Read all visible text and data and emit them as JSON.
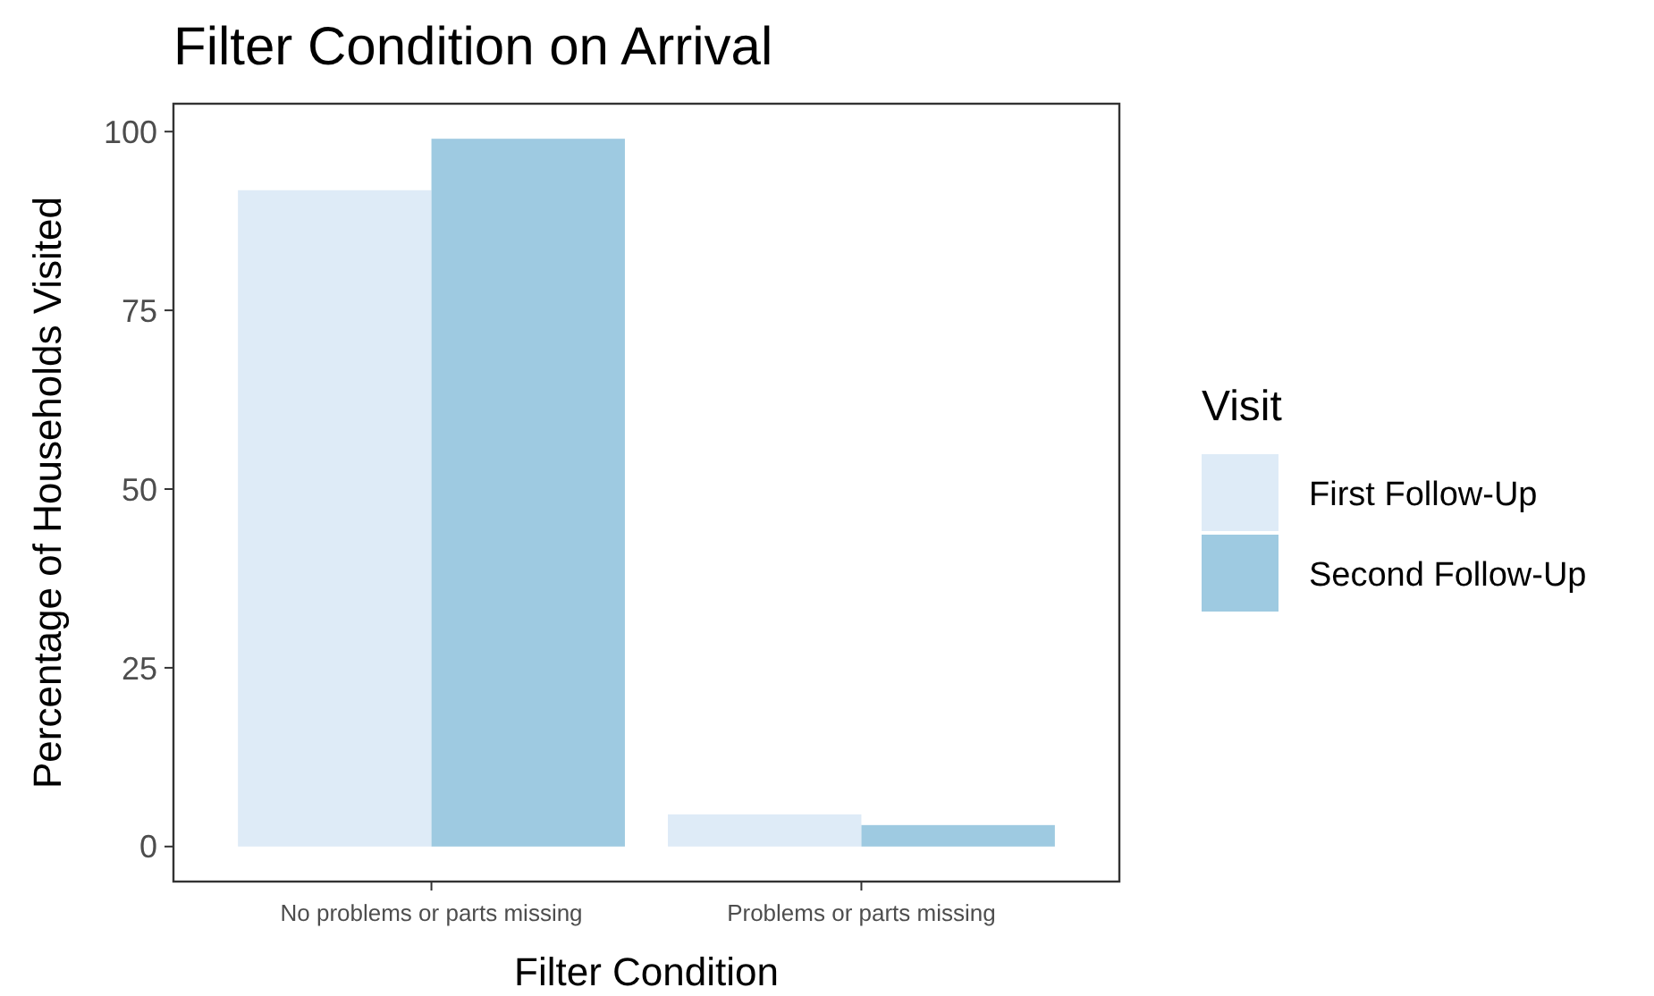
{
  "chart_data": {
    "type": "bar",
    "title": "Filter Condition on Arrival",
    "xlabel": "Filter Condition",
    "ylabel": "Percentage of Households Visited",
    "legend_title": "Visit",
    "categories": [
      "No problems or parts missing",
      "Problems or parts missing"
    ],
    "series": [
      {
        "name": "First Follow-Up",
        "color": "#deebf7",
        "values": [
          91.8,
          4.5
        ]
      },
      {
        "name": "Second Follow-Up",
        "color": "#9ecae1",
        "values": [
          99,
          3
        ]
      }
    ],
    "ylim": [
      -4.9,
      103.9
    ],
    "yticks": [
      0,
      25,
      50,
      75,
      100
    ],
    "grid": false,
    "legend": "right"
  }
}
